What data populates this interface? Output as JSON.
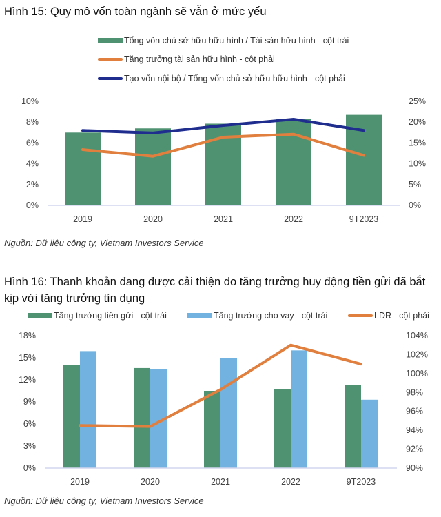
{
  "chart_data": [
    {
      "type": "bar",
      "title": "Hình 15: Quy mô vốn toàn ngành sẽ vẫn ở mức yếu",
      "categories": [
        "2019",
        "2020",
        "2021",
        "2022",
        "9T2023"
      ],
      "series": [
        {
          "name": "Tổng vốn chủ sở hữu hữu hình / Tài sản hữu hình  - cột trái",
          "kind": "bar",
          "axis": "left",
          "color": "#4e9272",
          "values": [
            7.0,
            7.4,
            7.85,
            8.3,
            8.7
          ]
        },
        {
          "name": "Tăng trưởng tài sản hữu hình - cột phải",
          "kind": "line",
          "axis": "right",
          "color": "#e07f3e",
          "values": [
            13.4,
            11.8,
            16.4,
            17.1,
            12.0
          ]
        },
        {
          "name": "Tạo vốn nội bộ / Tổng vốn chủ sở hữu hữu hình - cột phải",
          "kind": "line",
          "axis": "right",
          "color": "#1f2d8e",
          "values": [
            18.0,
            17.4,
            19.2,
            20.7,
            18.0
          ]
        }
      ],
      "y_left": {
        "ylim": [
          0,
          10
        ],
        "ticks": [
          "0%",
          "2%",
          "4%",
          "6%",
          "8%",
          "10%"
        ]
      },
      "y_right": {
        "ylim": [
          0,
          25
        ],
        "ticks": [
          "0%",
          "5%",
          "10%",
          "15%",
          "20%",
          "25%"
        ]
      },
      "source": "Nguồn: Dữ liệu công ty, Vietnam Investors Service",
      "legend_position": "top"
    },
    {
      "type": "bar",
      "title": "Hình 16: Thanh khoản đang được cải thiện do tăng trưởng huy động tiền gửi đã bắt kịp với tăng trưởng tín dụng",
      "title_lines": [
        "Hình 16: Thanh khoản đang được cải thiện do tăng trưởng huy động tiền gửi đã bắt",
        "kịp với tăng trưởng tín dụng"
      ],
      "categories": [
        "2019",
        "2020",
        "2021",
        "2022",
        "9T2023"
      ],
      "series": [
        {
          "name": "Tăng trưởng tiền gửi - cột trái",
          "kind": "bar",
          "axis": "left",
          "color": "#4e9272",
          "values": [
            14.0,
            13.6,
            10.5,
            10.7,
            11.3
          ]
        },
        {
          "name": "Tăng trưởng cho vay - cột trái",
          "kind": "bar",
          "axis": "left",
          "color": "#72b2e0",
          "values": [
            15.9,
            13.5,
            15.0,
            16.0,
            9.3
          ]
        },
        {
          "name": "LDR - cột phải",
          "kind": "line",
          "axis": "right",
          "color": "#e07f3e",
          "values": [
            94.5,
            94.4,
            98.3,
            103.0,
            101.0
          ]
        }
      ],
      "y_left": {
        "ylim": [
          0,
          18
        ],
        "ticks": [
          "0%",
          "3%",
          "6%",
          "9%",
          "12%",
          "15%",
          "18%"
        ]
      },
      "y_right": {
        "ylim": [
          90,
          104
        ],
        "ticks": [
          "90%",
          "92%",
          "94%",
          "96%",
          "98%",
          "100%",
          "102%",
          "104%"
        ]
      },
      "source": "Nguồn: Dữ liệu công ty, Vietnam Investors Service",
      "legend_position": "top"
    }
  ]
}
